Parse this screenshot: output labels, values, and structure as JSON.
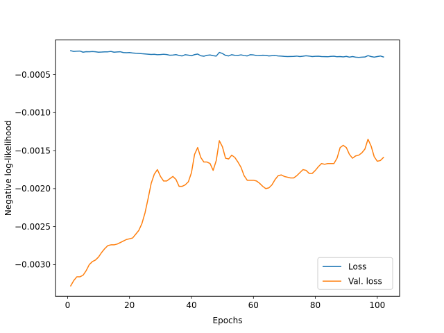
{
  "chart_data": {
    "type": "line",
    "title": "",
    "xlabel": "Epochs",
    "ylabel": "Negative log-likelihood",
    "xlim": [
      -3.9,
      107.2
    ],
    "ylim": [
      -0.003418,
      -4.4e-05
    ],
    "xticks": [
      0,
      20,
      40,
      60,
      80,
      100
    ],
    "yticks": [
      -0.003,
      -0.0025,
      -0.002,
      -0.0015,
      -0.001,
      -0.0005
    ],
    "ytick_labels": [
      "−0.0030",
      "−0.0025",
      "−0.0020",
      "−0.0015",
      "−0.0010",
      "−0.0005"
    ],
    "xtick_labels": [
      "0",
      "20",
      "40",
      "60",
      "80",
      "100"
    ],
    "grid": false,
    "legend_position": "bottom-right",
    "series": [
      {
        "name": "Loss",
        "color": "#1f77b4",
        "x": [
          1,
          2,
          3,
          4,
          5,
          6,
          7,
          8,
          9,
          10,
          11,
          12,
          13,
          14,
          15,
          16,
          17,
          18,
          19,
          20,
          21,
          22,
          23,
          24,
          25,
          26,
          27,
          28,
          29,
          30,
          31,
          32,
          33,
          34,
          35,
          36,
          37,
          38,
          39,
          40,
          41,
          42,
          43,
          44,
          45,
          46,
          47,
          48,
          49,
          50,
          51,
          52,
          53,
          54,
          55,
          56,
          57,
          58,
          59,
          60,
          61,
          62,
          63,
          64,
          65,
          66,
          67,
          68,
          69,
          70,
          71,
          72,
          73,
          74,
          75,
          76,
          77,
          78,
          79,
          80,
          81,
          82,
          83,
          84,
          85,
          86,
          87,
          88,
          89,
          90,
          91,
          92,
          93,
          94,
          95,
          96,
          97,
          98,
          99,
          100,
          101,
          102
        ],
        "values": [
          -0.000185,
          -0.000195,
          -0.000192,
          -0.00019,
          -0.000205,
          -0.000198,
          -0.000199,
          -0.000196,
          -0.000199,
          -0.000205,
          -0.000203,
          -0.0002,
          -0.0002,
          -0.000195,
          -0.000205,
          -0.000202,
          -0.000199,
          -0.00021,
          -0.000212,
          -0.00021,
          -0.000215,
          -0.000219,
          -0.000221,
          -0.000225,
          -0.000228,
          -0.000231,
          -0.000235,
          -0.000233,
          -0.000238,
          -0.000236,
          -0.000232,
          -0.000236,
          -0.000245,
          -0.000243,
          -0.000237,
          -0.000248,
          -0.000254,
          -0.000238,
          -0.000244,
          -0.000252,
          -0.000237,
          -0.000229,
          -0.000252,
          -0.000258,
          -0.000246,
          -0.000242,
          -0.000251,
          -0.000256,
          -0.000208,
          -0.000222,
          -0.000247,
          -0.000254,
          -0.000238,
          -0.000246,
          -0.000247,
          -0.00024,
          -0.000249,
          -0.000254,
          -0.000238,
          -0.000241,
          -0.000248,
          -0.00025,
          -0.000245,
          -0.000247,
          -0.000254,
          -0.000251,
          -0.000249,
          -0.000254,
          -0.000256,
          -0.00026,
          -0.000262,
          -0.000261,
          -0.00026,
          -0.000256,
          -0.000262,
          -0.000258,
          -0.000252,
          -0.000256,
          -0.000262,
          -0.000259,
          -0.000258,
          -0.000262,
          -0.000263,
          -0.000265,
          -0.00026,
          -0.000258,
          -0.000265,
          -0.000262,
          -0.000267,
          -0.00026,
          -0.00027,
          -0.000262,
          -0.00027,
          -0.000273,
          -0.00027,
          -0.000268,
          -0.00025,
          -0.000262,
          -0.00027,
          -0.000262,
          -0.000255,
          -0.000268
        ]
      },
      {
        "name": "Val. loss",
        "color": "#ff7f0e",
        "x": [
          1,
          2,
          3,
          4,
          5,
          6,
          7,
          8,
          9,
          10,
          11,
          12,
          13,
          14,
          15,
          16,
          17,
          18,
          19,
          20,
          21,
          22,
          23,
          24,
          25,
          26,
          27,
          28,
          29,
          30,
          31,
          32,
          33,
          34,
          35,
          36,
          37,
          38,
          39,
          40,
          41,
          42,
          43,
          44,
          45,
          46,
          47,
          48,
          49,
          50,
          51,
          52,
          53,
          54,
          55,
          56,
          57,
          58,
          59,
          60,
          61,
          62,
          63,
          64,
          65,
          66,
          67,
          68,
          69,
          70,
          71,
          72,
          73,
          74,
          75,
          76,
          77,
          78,
          79,
          80,
          81,
          82,
          83,
          84,
          85,
          86,
          87,
          88,
          89,
          90,
          91,
          92,
          93,
          94,
          95,
          96,
          97,
          98,
          99,
          100,
          101,
          102
        ],
        "values": [
          -0.00328,
          -0.00321,
          -0.00316,
          -0.00316,
          -0.00314,
          -0.00308,
          -0.003,
          -0.00296,
          -0.00294,
          -0.0029,
          -0.00284,
          -0.00279,
          -0.00275,
          -0.00274,
          -0.00274,
          -0.00273,
          -0.00271,
          -0.00269,
          -0.00267,
          -0.00266,
          -0.00265,
          -0.0026,
          -0.00255,
          -0.00246,
          -0.00232,
          -0.00213,
          -0.00193,
          -0.00181,
          -0.00175,
          -0.00184,
          -0.0019,
          -0.0019,
          -0.00187,
          -0.00184,
          -0.00188,
          -0.00197,
          -0.00197,
          -0.00195,
          -0.00191,
          -0.00179,
          -0.00155,
          -0.00146,
          -0.00159,
          -0.00165,
          -0.00165,
          -0.00167,
          -0.00176,
          -0.00163,
          -0.00137,
          -0.00145,
          -0.0016,
          -0.00161,
          -0.00156,
          -0.00159,
          -0.00165,
          -0.00172,
          -0.00183,
          -0.00189,
          -0.00189,
          -0.00189,
          -0.0019,
          -0.00193,
          -0.00197,
          -0.002,
          -0.00199,
          -0.00195,
          -0.00188,
          -0.00183,
          -0.00182,
          -0.00184,
          -0.00185,
          -0.00186,
          -0.00186,
          -0.00183,
          -0.00179,
          -0.00175,
          -0.00176,
          -0.0018,
          -0.0018,
          -0.00176,
          -0.00171,
          -0.00167,
          -0.00168,
          -0.00167,
          -0.00167,
          -0.00167,
          -0.0016,
          -0.00146,
          -0.00143,
          -0.00146,
          -0.00155,
          -0.0016,
          -0.00157,
          -0.00156,
          -0.00153,
          -0.00148,
          -0.00135,
          -0.00144,
          -0.00158,
          -0.00164,
          -0.00163,
          -0.00159
        ]
      }
    ]
  }
}
